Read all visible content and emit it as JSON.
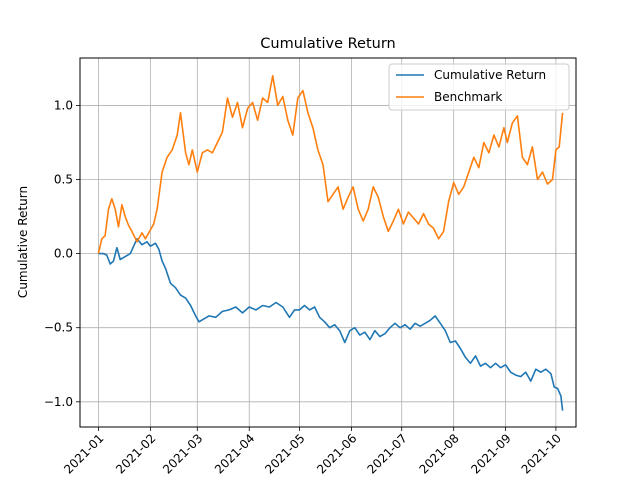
{
  "chart_data": {
    "type": "line",
    "title": "Cumulative Return",
    "xlabel": "",
    "ylabel": "Cumulative Return",
    "x_ticks": [
      "2021-01",
      "2021-02",
      "2021-03",
      "2021-04",
      "2021-05",
      "2021-06",
      "2021-07",
      "2021-08",
      "2021-09",
      "2021-10"
    ],
    "y_ticks": [
      "−1.0",
      "−0.5",
      "0.0",
      "0.5",
      "1.0"
    ],
    "xlim": [
      "2020-12-21",
      "2021-10-13"
    ],
    "ylim": [
      -1.17,
      1.32
    ],
    "grid": true,
    "legend_position": "top-right",
    "series": [
      {
        "name": "Cumulative Return",
        "color": "#1f77b4",
        "points": [
          [
            "2021-01-01",
            0.0
          ],
          [
            "2021-01-04",
            0.0
          ],
          [
            "2021-01-06",
            -0.01
          ],
          [
            "2021-01-08",
            -0.07
          ],
          [
            "2021-01-10",
            -0.05
          ],
          [
            "2021-01-12",
            0.04
          ],
          [
            "2021-01-14",
            -0.04
          ],
          [
            "2021-01-17",
            -0.02
          ],
          [
            "2021-01-20",
            0.0
          ],
          [
            "2021-01-24",
            0.1
          ],
          [
            "2021-01-27",
            0.06
          ],
          [
            "2021-01-30",
            0.08
          ],
          [
            "2021-02-01",
            0.05
          ],
          [
            "2021-02-04",
            0.07
          ],
          [
            "2021-02-06",
            0.03
          ],
          [
            "2021-02-08",
            -0.05
          ],
          [
            "2021-02-10",
            -0.1
          ],
          [
            "2021-02-13",
            -0.2
          ],
          [
            "2021-02-16",
            -0.23
          ],
          [
            "2021-02-19",
            -0.28
          ],
          [
            "2021-02-22",
            -0.3
          ],
          [
            "2021-02-25",
            -0.35
          ],
          [
            "2021-02-28",
            -0.42
          ],
          [
            "2021-03-02",
            -0.46
          ],
          [
            "2021-03-05",
            -0.44
          ],
          [
            "2021-03-08",
            -0.42
          ],
          [
            "2021-03-12",
            -0.43
          ],
          [
            "2021-03-16",
            -0.39
          ],
          [
            "2021-03-20",
            -0.38
          ],
          [
            "2021-03-24",
            -0.36
          ],
          [
            "2021-03-28",
            -0.4
          ],
          [
            "2021-04-01",
            -0.36
          ],
          [
            "2021-04-05",
            -0.38
          ],
          [
            "2021-04-09",
            -0.35
          ],
          [
            "2021-04-13",
            -0.36
          ],
          [
            "2021-04-17",
            -0.33
          ],
          [
            "2021-04-21",
            -0.36
          ],
          [
            "2021-04-25",
            -0.43
          ],
          [
            "2021-04-28",
            -0.38
          ],
          [
            "2021-05-01",
            -0.38
          ],
          [
            "2021-05-04",
            -0.35
          ],
          [
            "2021-05-07",
            -0.38
          ],
          [
            "2021-05-10",
            -0.36
          ],
          [
            "2021-05-13",
            -0.43
          ],
          [
            "2021-05-16",
            -0.46
          ],
          [
            "2021-05-19",
            -0.5
          ],
          [
            "2021-05-22",
            -0.48
          ],
          [
            "2021-05-25",
            -0.52
          ],
          [
            "2021-05-28",
            -0.6
          ],
          [
            "2021-05-31",
            -0.52
          ],
          [
            "2021-06-03",
            -0.5
          ],
          [
            "2021-06-06",
            -0.55
          ],
          [
            "2021-06-09",
            -0.53
          ],
          [
            "2021-06-12",
            -0.58
          ],
          [
            "2021-06-15",
            -0.52
          ],
          [
            "2021-06-18",
            -0.56
          ],
          [
            "2021-06-21",
            -0.54
          ],
          [
            "2021-06-24",
            -0.5
          ],
          [
            "2021-06-27",
            -0.47
          ],
          [
            "2021-06-30",
            -0.5
          ],
          [
            "2021-07-03",
            -0.48
          ],
          [
            "2021-07-06",
            -0.51
          ],
          [
            "2021-07-09",
            -0.47
          ],
          [
            "2021-07-12",
            -0.49
          ],
          [
            "2021-07-15",
            -0.47
          ],
          [
            "2021-07-18",
            -0.45
          ],
          [
            "2021-07-21",
            -0.42
          ],
          [
            "2021-07-24",
            -0.47
          ],
          [
            "2021-07-27",
            -0.52
          ],
          [
            "2021-07-30",
            -0.6
          ],
          [
            "2021-08-02",
            -0.59
          ],
          [
            "2021-08-05",
            -0.64
          ],
          [
            "2021-08-08",
            -0.7
          ],
          [
            "2021-08-11",
            -0.74
          ],
          [
            "2021-08-14",
            -0.69
          ],
          [
            "2021-08-17",
            -0.76
          ],
          [
            "2021-08-20",
            -0.74
          ],
          [
            "2021-08-23",
            -0.77
          ],
          [
            "2021-08-26",
            -0.74
          ],
          [
            "2021-08-29",
            -0.77
          ],
          [
            "2021-09-01",
            -0.75
          ],
          [
            "2021-09-04",
            -0.8
          ],
          [
            "2021-09-07",
            -0.82
          ],
          [
            "2021-09-10",
            -0.83
          ],
          [
            "2021-09-13",
            -0.8
          ],
          [
            "2021-09-16",
            -0.86
          ],
          [
            "2021-09-19",
            -0.78
          ],
          [
            "2021-09-22",
            -0.8
          ],
          [
            "2021-09-25",
            -0.78
          ],
          [
            "2021-09-28",
            -0.81
          ],
          [
            "2021-09-30",
            -0.9
          ],
          [
            "2021-10-02",
            -0.91
          ],
          [
            "2021-10-04",
            -0.96
          ],
          [
            "2021-10-05",
            -1.06
          ]
        ]
      },
      {
        "name": "Benchmark",
        "color": "#ff7f0e",
        "points": [
          [
            "2021-01-01",
            0.0
          ],
          [
            "2021-01-03",
            0.1
          ],
          [
            "2021-01-05",
            0.12
          ],
          [
            "2021-01-07",
            0.3
          ],
          [
            "2021-01-09",
            0.37
          ],
          [
            "2021-01-11",
            0.3
          ],
          [
            "2021-01-13",
            0.18
          ],
          [
            "2021-01-15",
            0.33
          ],
          [
            "2021-01-17",
            0.25
          ],
          [
            "2021-01-19",
            0.19
          ],
          [
            "2021-01-21",
            0.15
          ],
          [
            "2021-01-24",
            0.08
          ],
          [
            "2021-01-27",
            0.14
          ],
          [
            "2021-01-29",
            0.1
          ],
          [
            "2021-02-01",
            0.16
          ],
          [
            "2021-02-03",
            0.2
          ],
          [
            "2021-02-05",
            0.3
          ],
          [
            "2021-02-08",
            0.55
          ],
          [
            "2021-02-11",
            0.65
          ],
          [
            "2021-02-14",
            0.7
          ],
          [
            "2021-02-17",
            0.8
          ],
          [
            "2021-02-19",
            0.95
          ],
          [
            "2021-02-22",
            0.68
          ],
          [
            "2021-02-24",
            0.6
          ],
          [
            "2021-02-26",
            0.7
          ],
          [
            "2021-03-01",
            0.55
          ],
          [
            "2021-03-04",
            0.68
          ],
          [
            "2021-03-07",
            0.7
          ],
          [
            "2021-03-10",
            0.68
          ],
          [
            "2021-03-13",
            0.75
          ],
          [
            "2021-03-16",
            0.82
          ],
          [
            "2021-03-19",
            1.05
          ],
          [
            "2021-03-22",
            0.92
          ],
          [
            "2021-03-25",
            1.02
          ],
          [
            "2021-03-28",
            0.85
          ],
          [
            "2021-03-31",
            0.98
          ],
          [
            "2021-04-03",
            1.02
          ],
          [
            "2021-04-06",
            0.9
          ],
          [
            "2021-04-09",
            1.05
          ],
          [
            "2021-04-12",
            1.02
          ],
          [
            "2021-04-15",
            1.2
          ],
          [
            "2021-04-18",
            1.0
          ],
          [
            "2021-04-21",
            1.06
          ],
          [
            "2021-04-24",
            0.9
          ],
          [
            "2021-04-27",
            0.8
          ],
          [
            "2021-04-30",
            1.05
          ],
          [
            "2021-05-03",
            1.1
          ],
          [
            "2021-05-06",
            0.95
          ],
          [
            "2021-05-09",
            0.85
          ],
          [
            "2021-05-12",
            0.7
          ],
          [
            "2021-05-15",
            0.6
          ],
          [
            "2021-05-18",
            0.35
          ],
          [
            "2021-05-21",
            0.4
          ],
          [
            "2021-05-24",
            0.45
          ],
          [
            "2021-05-27",
            0.3
          ],
          [
            "2021-05-30",
            0.38
          ],
          [
            "2021-06-02",
            0.45
          ],
          [
            "2021-06-05",
            0.3
          ],
          [
            "2021-06-08",
            0.22
          ],
          [
            "2021-06-11",
            0.3
          ],
          [
            "2021-06-14",
            0.45
          ],
          [
            "2021-06-17",
            0.38
          ],
          [
            "2021-06-20",
            0.25
          ],
          [
            "2021-06-23",
            0.15
          ],
          [
            "2021-06-26",
            0.22
          ],
          [
            "2021-06-29",
            0.3
          ],
          [
            "2021-07-02",
            0.2
          ],
          [
            "2021-07-05",
            0.28
          ],
          [
            "2021-07-08",
            0.24
          ],
          [
            "2021-07-11",
            0.2
          ],
          [
            "2021-07-14",
            0.27
          ],
          [
            "2021-07-17",
            0.2
          ],
          [
            "2021-07-20",
            0.17
          ],
          [
            "2021-07-23",
            0.1
          ],
          [
            "2021-07-26",
            0.15
          ],
          [
            "2021-07-29",
            0.35
          ],
          [
            "2021-08-01",
            0.48
          ],
          [
            "2021-08-04",
            0.4
          ],
          [
            "2021-08-07",
            0.45
          ],
          [
            "2021-08-10",
            0.55
          ],
          [
            "2021-08-13",
            0.65
          ],
          [
            "2021-08-16",
            0.58
          ],
          [
            "2021-08-19",
            0.75
          ],
          [
            "2021-08-22",
            0.68
          ],
          [
            "2021-08-25",
            0.8
          ],
          [
            "2021-08-28",
            0.72
          ],
          [
            "2021-08-31",
            0.85
          ],
          [
            "2021-09-02",
            0.75
          ],
          [
            "2021-09-05",
            0.88
          ],
          [
            "2021-09-08",
            0.93
          ],
          [
            "2021-09-11",
            0.65
          ],
          [
            "2021-09-14",
            0.6
          ],
          [
            "2021-09-17",
            0.72
          ],
          [
            "2021-09-20",
            0.5
          ],
          [
            "2021-09-23",
            0.55
          ],
          [
            "2021-09-26",
            0.47
          ],
          [
            "2021-09-29",
            0.5
          ],
          [
            "2021-10-01",
            0.7
          ],
          [
            "2021-10-03",
            0.72
          ],
          [
            "2021-10-05",
            0.95
          ]
        ]
      }
    ]
  }
}
